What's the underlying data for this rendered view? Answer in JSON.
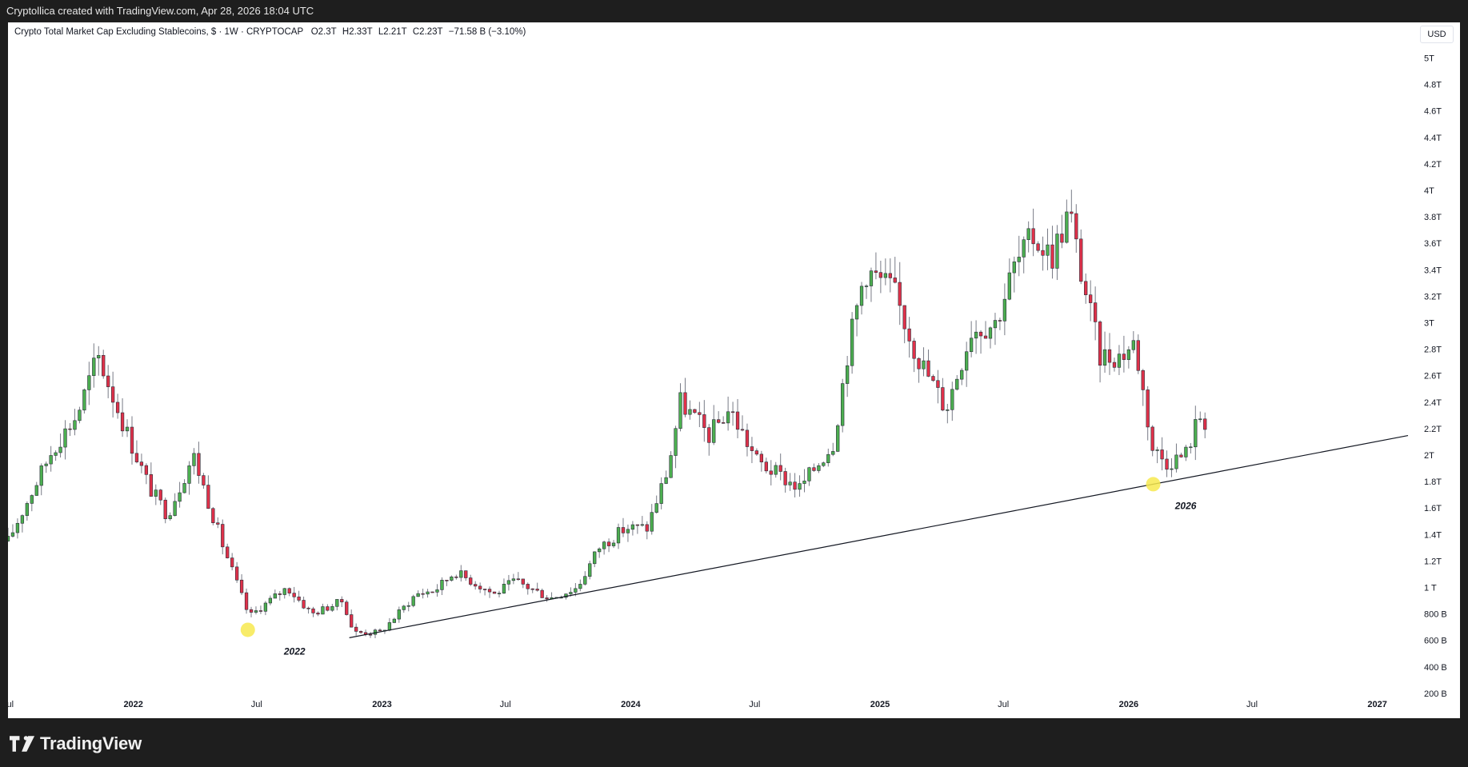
{
  "header": {
    "attribution": "Cryptollica created with TradingView.com, Apr 28, 2026 18:04 UTC"
  },
  "legend": {
    "symbol": "Crypto Total Market Cap Excluding Stablecoins, $ · 1W · CRYPTOCAP",
    "open_label": "O",
    "open_value": "2.3T",
    "high_label": "H",
    "high_value": "2.33T",
    "low_label": "L",
    "low_value": "2.21T",
    "close_label": "C",
    "close_value": "2.23T",
    "change": "−71.58 B (−3.10%)"
  },
  "currency": "USD",
  "footer": {
    "brand": "TradingView"
  },
  "colors": {
    "up": "#4caf50",
    "down": "#e0314a",
    "trendline": "#131722",
    "marker": "#f7e94f",
    "background": "#ffffff"
  },
  "chart_data": {
    "type": "candlestick",
    "title": "Crypto Total Market Cap Excluding Stablecoins",
    "interval": "1W",
    "y_axis": {
      "ticks": [
        "200 B",
        "400 B",
        "600 B",
        "800 B",
        "1 T",
        "1.2T",
        "1.4T",
        "1.6T",
        "1.8T",
        "2T",
        "2.2T",
        "2.4T",
        "2.6T",
        "2.8T",
        "3T",
        "3.2T",
        "3.4T",
        "3.6T",
        "3.8T",
        "4T",
        "4.2T",
        "4.4T",
        "4.6T",
        "4.8T",
        "5T"
      ],
      "range_trillions": [
        0.1,
        5.2
      ]
    },
    "x_axis": {
      "ticks": [
        {
          "label": "Jul",
          "date": "2021-07-01",
          "bold": false
        },
        {
          "label": "2022",
          "date": "2022-01-01",
          "bold": true
        },
        {
          "label": "Jul",
          "date": "2022-07-01",
          "bold": false
        },
        {
          "label": "2023",
          "date": "2023-01-01",
          "bold": true
        },
        {
          "label": "Jul",
          "date": "2023-07-01",
          "bold": false
        },
        {
          "label": "2024",
          "date": "2024-01-01",
          "bold": true
        },
        {
          "label": "Jul",
          "date": "2024-07-01",
          "bold": false
        },
        {
          "label": "2025",
          "date": "2025-01-01",
          "bold": true
        },
        {
          "label": "Jul",
          "date": "2025-07-01",
          "bold": false
        },
        {
          "label": "2026",
          "date": "2026-01-01",
          "bold": true
        },
        {
          "label": "Jul",
          "date": "2026-07-01",
          "bold": false
        },
        {
          "label": "2027",
          "date": "2027-01-01",
          "bold": true
        }
      ],
      "range": [
        "2021-07-01",
        "2027-02-15"
      ]
    },
    "anchors_trillions": [
      [
        "2021-07-01",
        1.35
      ],
      [
        "2021-09-05",
        2.05
      ],
      [
        "2021-10-10",
        2.3
      ],
      [
        "2021-11-10",
        2.75
      ],
      [
        "2021-12-20",
        2.2
      ],
      [
        "2022-01-25",
        1.75
      ],
      [
        "2022-02-20",
        1.55
      ],
      [
        "2022-03-30",
        2.0
      ],
      [
        "2022-05-10",
        1.35
      ],
      [
        "2022-06-20",
        0.78
      ],
      [
        "2022-07-20",
        0.9
      ],
      [
        "2022-08-15",
        1.0
      ],
      [
        "2022-09-20",
        0.8
      ],
      [
        "2022-11-05",
        0.9
      ],
      [
        "2022-11-20",
        0.66
      ],
      [
        "2022-12-30",
        0.66
      ],
      [
        "2023-02-20",
        0.95
      ],
      [
        "2023-03-20",
        0.98
      ],
      [
        "2023-04-18",
        1.12
      ],
      [
        "2023-06-15",
        0.95
      ],
      [
        "2023-07-15",
        1.05
      ],
      [
        "2023-09-05",
        0.92
      ],
      [
        "2023-10-15",
        1.0
      ],
      [
        "2023-11-15",
        1.3
      ],
      [
        "2023-12-25",
        1.45
      ],
      [
        "2024-01-25",
        1.45
      ],
      [
        "2024-02-25",
        1.9
      ],
      [
        "2024-03-14",
        2.4
      ],
      [
        "2024-04-25",
        2.15
      ],
      [
        "2024-05-25",
        2.35
      ],
      [
        "2024-07-05",
        1.95
      ],
      [
        "2024-08-05",
        1.85
      ],
      [
        "2024-09-05",
        1.75
      ],
      [
        "2024-10-25",
        2.1
      ],
      [
        "2024-11-15",
        2.8
      ],
      [
        "2024-12-10",
        3.4
      ],
      [
        "2025-01-20",
        3.25
      ],
      [
        "2025-02-25",
        2.75
      ],
      [
        "2025-04-08",
        2.35
      ],
      [
        "2025-05-15",
        2.95
      ],
      [
        "2025-06-20",
        3.0
      ],
      [
        "2025-07-15",
        3.4
      ],
      [
        "2025-08-14",
        3.65
      ],
      [
        "2025-09-10",
        3.5
      ],
      [
        "2025-10-06",
        3.85
      ],
      [
        "2025-10-20",
        3.45
      ],
      [
        "2025-11-20",
        2.75
      ],
      [
        "2025-12-20",
        2.75
      ],
      [
        "2026-01-10",
        2.85
      ],
      [
        "2026-02-05",
        2.05
      ],
      [
        "2026-02-25",
        1.95
      ],
      [
        "2026-03-25",
        2.0
      ],
      [
        "2026-04-15",
        2.3
      ],
      [
        "2026-04-28",
        2.23
      ]
    ],
    "trendline": {
      "start": {
        "date": "2022-11-14",
        "value_trillions": 0.62
      },
      "through": {
        "date": "2026-02-06",
        "value_trillions": 1.78
      },
      "extends_right": true
    },
    "annotations": [
      {
        "text": "2022",
        "date": "2022-08-10",
        "value_trillions": 0.6
      },
      {
        "text": "2026",
        "date": "2026-03-10",
        "value_trillions": 1.7
      }
    ],
    "highlights": [
      {
        "date": "2022-06-18",
        "value_trillions": 0.68
      },
      {
        "date": "2026-02-06",
        "value_trillions": 1.78
      }
    ],
    "last_bar": {
      "open": 2.3,
      "high": 2.33,
      "low": 2.21,
      "close": 2.23,
      "change": "−71.58 B",
      "change_pct": "−3.10%"
    }
  }
}
